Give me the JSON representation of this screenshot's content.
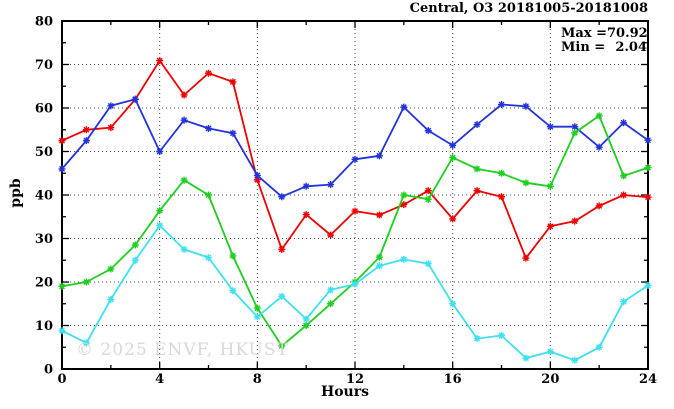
{
  "header": {
    "title": "Central, O3 20181005-20181008"
  },
  "annotation": {
    "max_label": "Max =",
    "max_value": "70.92",
    "min_label": "Min =",
    "min_value": "2.04"
  },
  "watermark": "© 2025 ENVF, HKUST",
  "colors": {
    "series_red": "#ee0000",
    "series_blue": "#2233dd",
    "series_green": "#1fcf1f",
    "series_cyan": "#3fe0ef",
    "grid": "#4a4a4a",
    "axis": "#000000",
    "watermark": "#d9d9d9"
  },
  "chart_data": {
    "type": "line",
    "title": "Central, O3 20181005-20181008",
    "xlabel": "Hours",
    "ylabel": "ppb",
    "xlim": [
      0,
      24
    ],
    "ylim": [
      0,
      80
    ],
    "xticks_major": [
      0,
      4,
      8,
      12,
      16,
      20,
      24
    ],
    "xticks_minor": [
      2,
      6,
      10,
      14,
      18,
      22
    ],
    "yticks_major": [
      0,
      10,
      20,
      30,
      40,
      50,
      60,
      70,
      80
    ],
    "yticks_minor": [
      5,
      15,
      25,
      35,
      45,
      55,
      65,
      75
    ],
    "grid_x": [
      4,
      8,
      12,
      16,
      20
    ],
    "grid_y": [
      10,
      20,
      30,
      40,
      50,
      60,
      70
    ],
    "grid_style": "dotted",
    "legend": "none",
    "marker": "asterisk",
    "x": [
      0,
      1,
      2,
      3,
      4,
      5,
      6,
      7,
      8,
      9,
      10,
      11,
      12,
      13,
      14,
      15,
      16,
      17,
      18,
      19,
      20,
      21,
      22,
      23,
      24
    ],
    "series": [
      {
        "name": "day-1-red",
        "color": "#ee0000",
        "values": [
          52.5,
          55,
          55.5,
          62,
          70.9,
          63,
          68,
          66,
          43.5,
          27.5,
          35.5,
          30.8,
          36.3,
          35.4,
          37.8,
          41,
          34.5,
          41,
          39.6,
          25.5,
          32.8,
          34,
          37.5,
          40,
          39.5
        ]
      },
      {
        "name": "day-2-blue",
        "color": "#2233dd",
        "values": [
          46,
          52.5,
          60.5,
          62,
          50,
          57.2,
          55.3,
          54.2,
          44.5,
          39.6,
          42,
          42.4,
          48.2,
          49,
          60.2,
          54.8,
          51.4,
          56.2,
          60.8,
          60.4,
          55.7,
          55.7,
          51,
          56.6,
          52.6
        ]
      },
      {
        "name": "day-3-green",
        "color": "#1fcf1f",
        "values": [
          19,
          20,
          23,
          28.5,
          36.4,
          43.4,
          40,
          26,
          14,
          5.3,
          10,
          15,
          20,
          25.7,
          40,
          39,
          48.6,
          46,
          45,
          42.8,
          42,
          54.3,
          58.2,
          44.4,
          46.3
        ]
      },
      {
        "name": "day-4-cyan",
        "color": "#3fe0ef",
        "values": [
          8.8,
          6,
          16,
          25,
          33,
          27.5,
          25.6,
          18,
          12,
          16.7,
          11.5,
          18.2,
          19.5,
          23.7,
          25.2,
          24.2,
          15,
          7,
          7.7,
          2.5,
          4,
          2,
          5,
          15.5,
          19.2
        ]
      }
    ],
    "annotations": {
      "max": 70.92,
      "min": 2.04
    }
  }
}
